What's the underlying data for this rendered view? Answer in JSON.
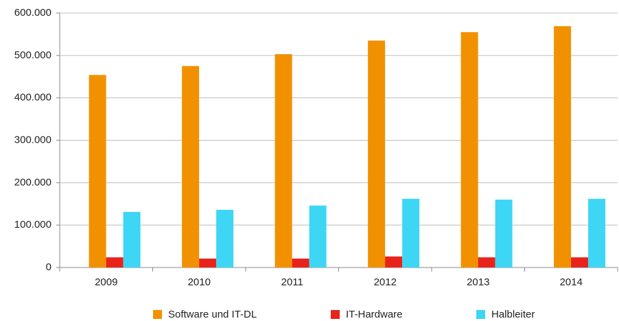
{
  "chart_data": {
    "type": "bar",
    "categories": [
      "2009",
      "2010",
      "2011",
      "2012",
      "2013",
      "2014"
    ],
    "series": [
      {
        "name": "Software und IT-DL",
        "color": "#f29100",
        "values": [
          454000,
          475000,
          503000,
          535000,
          555000,
          569000
        ]
      },
      {
        "name": "IT-Hardware",
        "color": "#e8231c",
        "values": [
          24000,
          21000,
          21000,
          26000,
          24000,
          24000
        ]
      },
      {
        "name": "Halbleiter",
        "color": "#3dd6f5",
        "values": [
          131000,
          136000,
          146000,
          162000,
          160000,
          162000
        ]
      }
    ],
    "ylim": [
      0,
      600000
    ],
    "yticks": [
      0,
      {
        "value": 100000,
        "label": "100.000"
      },
      {
        "value": 200000,
        "label": "200.000"
      },
      {
        "value": 300000,
        "label": "300.000"
      },
      {
        "value": 400000,
        "label": "400.000"
      },
      {
        "value": 500000,
        "label": "500.000"
      },
      {
        "value": 600000,
        "label": "600.000"
      }
    ],
    "grid": true,
    "legend": "bottom"
  }
}
